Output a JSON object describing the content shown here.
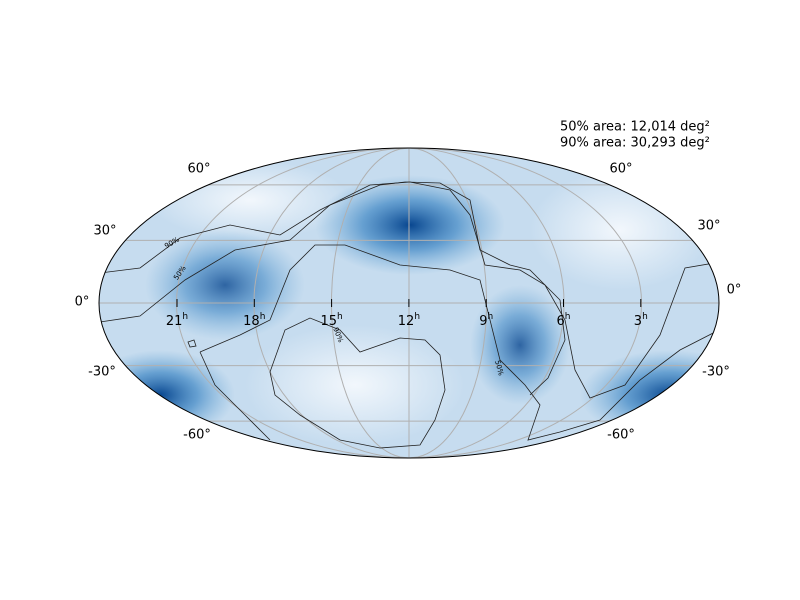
{
  "map": {
    "area_labels": [
      "50% area: 12,014 deg²",
      "90% area: 30,293 deg²"
    ],
    "ra_labels": [
      {
        "hours": "21",
        "unit": "h"
      },
      {
        "hours": "18",
        "unit": "h"
      },
      {
        "hours": "15",
        "unit": "h"
      },
      {
        "hours": "12",
        "unit": "h"
      },
      {
        "hours": "9",
        "unit": "h"
      },
      {
        "hours": "6",
        "unit": "h"
      },
      {
        "hours": "3",
        "unit": "h"
      }
    ],
    "dec_labels_left": [
      "60°",
      "30°",
      "0°",
      "-30°",
      "-60°"
    ],
    "dec_labels_right": [
      "60°",
      "30°",
      "0°",
      "-30°",
      "-60°"
    ],
    "contour_labels": [
      "90%",
      "50%",
      "90%",
      "50%"
    ]
  }
}
